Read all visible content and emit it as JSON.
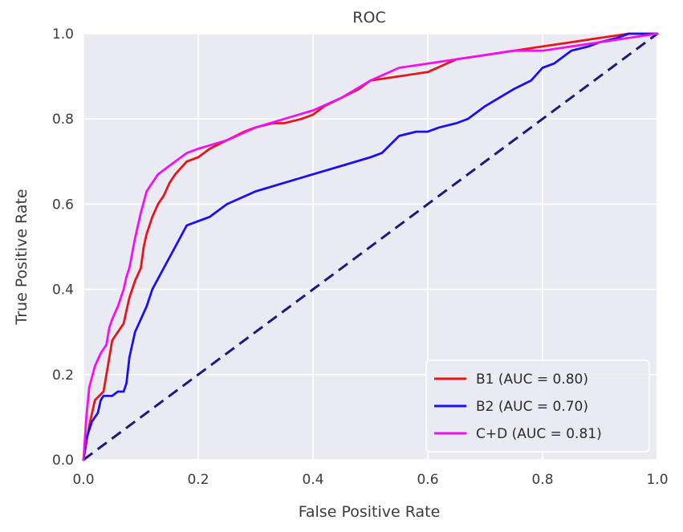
{
  "chart_data": {
    "type": "line",
    "title": "ROC",
    "xlabel": "False Positive Rate",
    "ylabel": "True Positive Rate",
    "xlim": [
      0.0,
      1.0
    ],
    "ylim": [
      0.0,
      1.0
    ],
    "xticks": [
      "0.0",
      "0.2",
      "0.4",
      "0.6",
      "0.8",
      "1.0"
    ],
    "yticks": [
      "0.0",
      "0.2",
      "0.4",
      "0.6",
      "0.8",
      "1.0"
    ],
    "grid": true,
    "legend_position": "lower-right",
    "background_color": "#eaeaf2",
    "grid_color": "#ffffff",
    "series": [
      {
        "name": "B1 (AUC = 0.80)",
        "color": "#e8141c",
        "x": [
          0.0,
          0.01,
          0.02,
          0.035,
          0.04,
          0.045,
          0.05,
          0.06,
          0.07,
          0.075,
          0.08,
          0.09,
          0.1,
          0.105,
          0.11,
          0.12,
          0.13,
          0.14,
          0.15,
          0.16,
          0.18,
          0.2,
          0.22,
          0.25,
          0.28,
          0.3,
          0.33,
          0.35,
          0.38,
          0.4,
          0.42,
          0.45,
          0.48,
          0.5,
          0.55,
          0.6,
          0.65,
          0.7,
          0.75,
          0.8,
          0.85,
          0.9,
          0.95,
          1.0
        ],
        "y": [
          0.0,
          0.08,
          0.14,
          0.16,
          0.2,
          0.24,
          0.28,
          0.3,
          0.32,
          0.35,
          0.38,
          0.42,
          0.45,
          0.5,
          0.53,
          0.57,
          0.6,
          0.62,
          0.65,
          0.67,
          0.7,
          0.71,
          0.73,
          0.75,
          0.77,
          0.78,
          0.79,
          0.79,
          0.8,
          0.81,
          0.83,
          0.85,
          0.87,
          0.89,
          0.9,
          0.91,
          0.94,
          0.95,
          0.96,
          0.97,
          0.98,
          0.99,
          1.0,
          1.0
        ]
      },
      {
        "name": "B2 (AUC = 0.70)",
        "color": "#1a10ee",
        "x": [
          0.0,
          0.005,
          0.015,
          0.025,
          0.03,
          0.035,
          0.04,
          0.05,
          0.06,
          0.07,
          0.075,
          0.08,
          0.09,
          0.1,
          0.11,
          0.12,
          0.14,
          0.16,
          0.18,
          0.2,
          0.22,
          0.25,
          0.3,
          0.35,
          0.4,
          0.45,
          0.5,
          0.52,
          0.55,
          0.58,
          0.6,
          0.62,
          0.65,
          0.67,
          0.7,
          0.75,
          0.78,
          0.8,
          0.82,
          0.85,
          0.88,
          0.9,
          0.93,
          0.95,
          1.0
        ],
        "y": [
          0.0,
          0.05,
          0.09,
          0.11,
          0.14,
          0.15,
          0.15,
          0.15,
          0.16,
          0.16,
          0.18,
          0.24,
          0.3,
          0.33,
          0.36,
          0.4,
          0.45,
          0.5,
          0.55,
          0.56,
          0.57,
          0.6,
          0.63,
          0.65,
          0.67,
          0.69,
          0.71,
          0.72,
          0.76,
          0.77,
          0.77,
          0.78,
          0.79,
          0.8,
          0.83,
          0.87,
          0.89,
          0.92,
          0.93,
          0.96,
          0.97,
          0.98,
          0.99,
          1.0,
          1.0
        ]
      },
      {
        "name": "C+D (AUC = 0.81)",
        "color": "#f010f0",
        "x": [
          0.0,
          0.005,
          0.01,
          0.02,
          0.03,
          0.04,
          0.045,
          0.05,
          0.06,
          0.07,
          0.075,
          0.08,
          0.09,
          0.1,
          0.11,
          0.12,
          0.13,
          0.14,
          0.16,
          0.18,
          0.2,
          0.25,
          0.3,
          0.35,
          0.4,
          0.45,
          0.5,
          0.55,
          0.6,
          0.65,
          0.7,
          0.75,
          0.8,
          0.85,
          0.9,
          0.95,
          1.0
        ],
        "y": [
          0.0,
          0.1,
          0.17,
          0.22,
          0.25,
          0.27,
          0.31,
          0.33,
          0.36,
          0.4,
          0.43,
          0.45,
          0.52,
          0.58,
          0.63,
          0.65,
          0.67,
          0.68,
          0.7,
          0.72,
          0.73,
          0.75,
          0.78,
          0.8,
          0.82,
          0.85,
          0.89,
          0.92,
          0.93,
          0.94,
          0.95,
          0.96,
          0.96,
          0.97,
          0.98,
          0.99,
          1.0
        ]
      }
    ],
    "reference_line": {
      "x": [
        0.0,
        1.0
      ],
      "y": [
        0.0,
        1.0
      ],
      "color": "#1a1a80",
      "style": "dashed"
    }
  }
}
